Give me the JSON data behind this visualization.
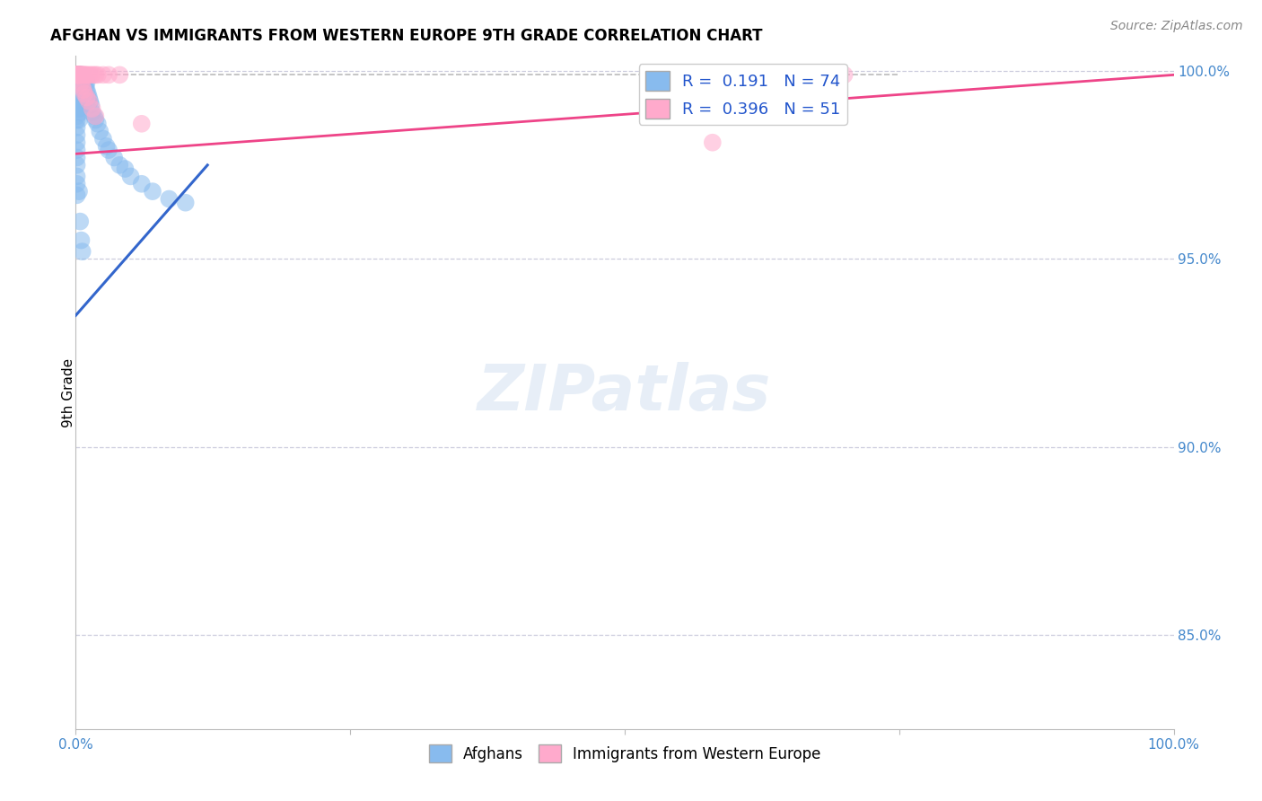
{
  "title": "AFGHAN VS IMMIGRANTS FROM WESTERN EUROPE 9TH GRADE CORRELATION CHART",
  "source": "Source: ZipAtlas.com",
  "ylabel": "9th Grade",
  "R1": 0.191,
  "N1": 74,
  "R2": 0.396,
  "N2": 51,
  "blue_color": "#88bbee",
  "pink_color": "#ffaacc",
  "blue_line_color": "#3366cc",
  "pink_line_color": "#ee4488",
  "dash_color": "#aaaaaa",
  "tick_color": "#4488cc",
  "grid_color": "#ccccdd",
  "xlim": [
    0.0,
    1.0
  ],
  "ylim": [
    0.825,
    1.004
  ],
  "ytick_vals": [
    0.85,
    0.9,
    0.95,
    1.0
  ],
  "blue_scatter_x": [
    0.001,
    0.001,
    0.001,
    0.001,
    0.001,
    0.001,
    0.001,
    0.001,
    0.001,
    0.001,
    0.001,
    0.001,
    0.001,
    0.001,
    0.001,
    0.001,
    0.001,
    0.001,
    0.001,
    0.001,
    0.002,
    0.002,
    0.002,
    0.002,
    0.002,
    0.003,
    0.003,
    0.003,
    0.003,
    0.003,
    0.003,
    0.004,
    0.004,
    0.004,
    0.004,
    0.004,
    0.005,
    0.005,
    0.005,
    0.005,
    0.006,
    0.006,
    0.007,
    0.007,
    0.007,
    0.008,
    0.008,
    0.009,
    0.01,
    0.01,
    0.011,
    0.012,
    0.013,
    0.014,
    0.015,
    0.017,
    0.018,
    0.02,
    0.022,
    0.025,
    0.028,
    0.03,
    0.035,
    0.04,
    0.045,
    0.05,
    0.06,
    0.07,
    0.085,
    0.1,
    0.003,
    0.004,
    0.005,
    0.006
  ],
  "blue_scatter_y": [
    0.999,
    0.998,
    0.997,
    0.996,
    0.995,
    0.994,
    0.993,
    0.992,
    0.99,
    0.988,
    0.987,
    0.985,
    0.983,
    0.981,
    0.979,
    0.977,
    0.975,
    0.972,
    0.97,
    0.967,
    0.999,
    0.997,
    0.995,
    0.993,
    0.99,
    0.999,
    0.997,
    0.995,
    0.993,
    0.99,
    0.987,
    0.999,
    0.997,
    0.995,
    0.992,
    0.989,
    0.999,
    0.997,
    0.994,
    0.991,
    0.998,
    0.995,
    0.998,
    0.996,
    0.993,
    0.997,
    0.994,
    0.996,
    0.997,
    0.995,
    0.994,
    0.993,
    0.992,
    0.991,
    0.989,
    0.988,
    0.987,
    0.986,
    0.984,
    0.982,
    0.98,
    0.979,
    0.977,
    0.975,
    0.974,
    0.972,
    0.97,
    0.968,
    0.966,
    0.965,
    0.968,
    0.96,
    0.955,
    0.952
  ],
  "pink_scatter_x": [
    0.001,
    0.001,
    0.001,
    0.001,
    0.001,
    0.001,
    0.001,
    0.001,
    0.001,
    0.001,
    0.002,
    0.002,
    0.002,
    0.002,
    0.002,
    0.003,
    0.003,
    0.003,
    0.003,
    0.003,
    0.004,
    0.004,
    0.004,
    0.005,
    0.005,
    0.006,
    0.006,
    0.007,
    0.008,
    0.009,
    0.01,
    0.012,
    0.014,
    0.016,
    0.018,
    0.02,
    0.025,
    0.03,
    0.04,
    0.005,
    0.006,
    0.007,
    0.008,
    0.01,
    0.012,
    0.015,
    0.018,
    0.06,
    0.58,
    0.65,
    0.7
  ],
  "pink_scatter_y": [
    0.999,
    0.999,
    0.999,
    0.999,
    0.999,
    0.999,
    0.999,
    0.999,
    0.999,
    0.999,
    0.999,
    0.999,
    0.999,
    0.999,
    0.999,
    0.999,
    0.999,
    0.999,
    0.999,
    0.999,
    0.999,
    0.999,
    0.999,
    0.999,
    0.999,
    0.999,
    0.999,
    0.999,
    0.999,
    0.999,
    0.999,
    0.999,
    0.999,
    0.999,
    0.999,
    0.999,
    0.999,
    0.999,
    0.999,
    0.997,
    0.996,
    0.995,
    0.994,
    0.993,
    0.992,
    0.99,
    0.988,
    0.986,
    0.981,
    0.999,
    0.999
  ],
  "blue_line_x": [
    0.0,
    0.12
  ],
  "blue_line_y": [
    0.935,
    0.975
  ],
  "pink_line_x": [
    0.0,
    1.0
  ],
  "pink_line_y": [
    0.978,
    0.999
  ],
  "dash_line_x": [
    0.0,
    0.75
  ],
  "dash_line_y": [
    0.999,
    0.999
  ]
}
